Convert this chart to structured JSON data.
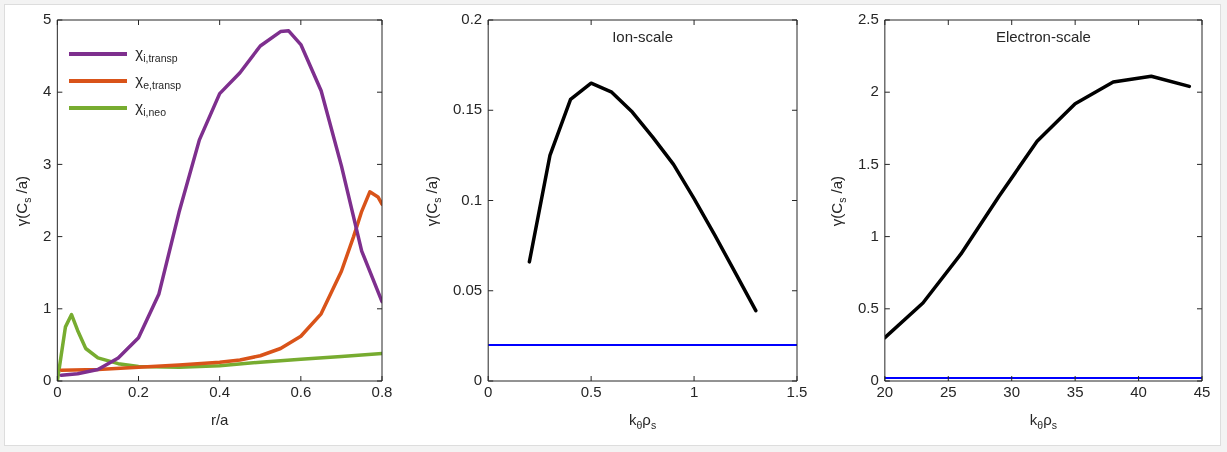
{
  "chart_data": [
    {
      "type": "line",
      "xlabel": "r/a",
      "ylabel": "γ(C$_{s}$ /a)",
      "xlim": [
        0,
        0.8
      ],
      "xticks": [
        0,
        0.2,
        0.4,
        0.6,
        0.8
      ],
      "ylim": [
        0,
        5
      ],
      "yticks": [
        0,
        1,
        2,
        3,
        4,
        5
      ],
      "legend": "top left",
      "grid": false,
      "series": [
        {
          "name": "χ$_{i,transp}$",
          "color": "#7e2f8e",
          "x": [
            0.01,
            0.05,
            0.1,
            0.15,
            0.2,
            0.25,
            0.3,
            0.35,
            0.4,
            0.45,
            0.5,
            0.55,
            0.57,
            0.6,
            0.65,
            0.7,
            0.75,
            0.8
          ],
          "values": [
            0.08,
            0.1,
            0.16,
            0.32,
            0.6,
            1.2,
            2.34,
            3.34,
            3.98,
            4.27,
            4.64,
            4.84,
            4.85,
            4.66,
            4.02,
            2.98,
            1.8,
            1.1
          ]
        },
        {
          "name": "χ$_{e,transp}$",
          "color": "#d95319",
          "x": [
            0.01,
            0.1,
            0.2,
            0.3,
            0.4,
            0.45,
            0.5,
            0.55,
            0.6,
            0.65,
            0.7,
            0.73,
            0.75,
            0.77,
            0.79,
            0.8
          ],
          "values": [
            0.15,
            0.16,
            0.19,
            0.22,
            0.26,
            0.29,
            0.35,
            0.45,
            0.62,
            0.93,
            1.52,
            2.0,
            2.35,
            2.62,
            2.55,
            2.45
          ]
        },
        {
          "name": "χ$_{i,neo}$",
          "color": "#77ac30",
          "x": [
            0,
            0.02,
            0.035,
            0.05,
            0.07,
            0.1,
            0.15,
            0.2,
            0.3,
            0.4,
            0.5,
            0.6,
            0.7,
            0.8
          ],
          "values": [
            0,
            0.75,
            0.92,
            0.7,
            0.45,
            0.32,
            0.24,
            0.2,
            0.19,
            0.21,
            0.26,
            0.3,
            0.34,
            0.38
          ]
        }
      ]
    },
    {
      "type": "line",
      "title": "Ion-scale",
      "xlabel": "k$_{θ}$ρ$_{s}$",
      "ylabel": "γ(C$_{s}$ /a)",
      "xlim": [
        0,
        1.5
      ],
      "xticks": [
        0,
        0.5,
        1,
        1.5
      ],
      "ylim": [
        0,
        0.2
      ],
      "yticks": [
        0,
        0.05,
        0.1,
        0.15,
        0.2
      ],
      "grid": false,
      "x": [
        0.2,
        0.3,
        0.4,
        0.5,
        0.6,
        0.7,
        0.8,
        0.9,
        1.0,
        1.1,
        1.2,
        1.3
      ],
      "series": [
        {
          "color": "#000000",
          "values": [
            0.066,
            0.125,
            0.156,
            0.165,
            0.16,
            0.149,
            0.135,
            0.12,
            0.101,
            0.081,
            0.06,
            0.039
          ]
        }
      ],
      "ref_lines": [
        {
          "axis": "y",
          "value": 0.02,
          "color": "#0000ff"
        }
      ]
    },
    {
      "type": "line",
      "title": "Electron-scale",
      "xlabel": "k$_{θ}$ρ$_{s}$",
      "ylabel": "γ(C$_{s}$ /a)",
      "xlim": [
        20,
        45
      ],
      "xticks": [
        20,
        25,
        30,
        35,
        40,
        45
      ],
      "ylim": [
        0,
        2.5
      ],
      "yticks": [
        0,
        0.5,
        1,
        1.5,
        2,
        2.5
      ],
      "grid": false,
      "x": [
        20,
        23,
        26,
        29,
        32,
        35,
        38,
        41,
        44
      ],
      "series": [
        {
          "color": "#000000",
          "values": [
            0.3,
            0.54,
            0.88,
            1.28,
            1.66,
            1.92,
            2.07,
            2.11,
            2.04
          ]
        }
      ],
      "ref_lines": [
        {
          "axis": "y",
          "value": 0.02,
          "color": "#0000ff"
        }
      ]
    }
  ]
}
